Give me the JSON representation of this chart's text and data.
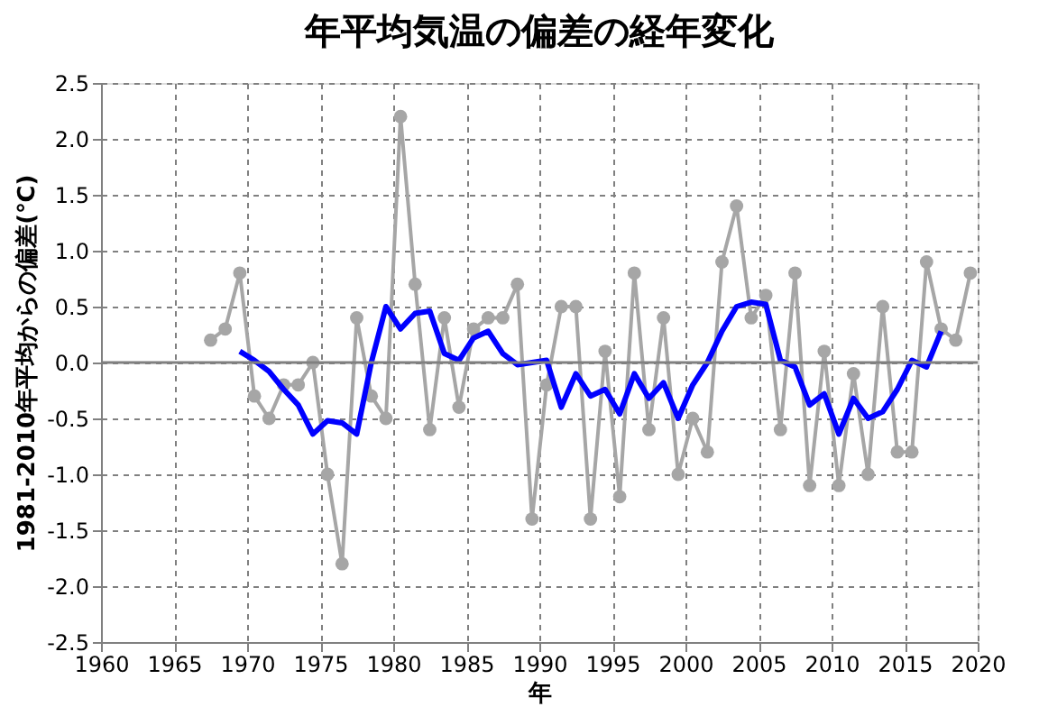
{
  "chart_data": {
    "type": "line",
    "title": "年平均気温の偏差の経年変化",
    "xlabel": "年",
    "ylabel": "1981-2010年平均からの偏差(℃)",
    "xlim": [
      1960,
      2020
    ],
    "xticks": [
      1960,
      1965,
      1970,
      1975,
      1980,
      1985,
      1990,
      1995,
      2000,
      2005,
      2010,
      2015,
      2020
    ],
    "ylim": [
      -2.5,
      2.5
    ],
    "yticks": [
      {
        "value": -2.5,
        "label": "-2.5"
      },
      {
        "value": -2,
        "label": "-2.0"
      },
      {
        "value": -1.5,
        "label": "-1.5"
      },
      {
        "value": -1,
        "label": "-1.0"
      },
      {
        "value": -0.5,
        "label": "-0.5"
      },
      {
        "value": 0,
        "label": "0.0"
      },
      {
        "value": 0.5,
        "label": "0.5"
      },
      {
        "value": 1,
        "label": "1.0"
      },
      {
        "value": 1.5,
        "label": "1.5"
      },
      {
        "value": 2,
        "label": "2.0"
      },
      {
        "value": 2.5,
        "label": "2.5"
      }
    ],
    "grid": true,
    "line_style": "solid",
    "ref_lines": [
      {
        "axis": "y",
        "value": 0,
        "color": "#808080",
        "line_style": "solid"
      }
    ],
    "series": [
      {
        "color": "#a6a6a6",
        "marker": "circle",
        "x": [
          1967.5,
          1968.5,
          1969.5,
          1970.5,
          1971.5,
          1972.5,
          1973.5,
          1974.5,
          1975.5,
          1976.5,
          1977.5,
          1978.5,
          1979.5,
          1980.5,
          1981.5,
          1982.5,
          1983.5,
          1984.5,
          1985.5,
          1986.5,
          1987.5,
          1988.5,
          1989.5,
          1990.5,
          1991.5,
          1992.5,
          1993.5,
          1994.5,
          1995.5,
          1996.5,
          1997.5,
          1998.5,
          1999.5,
          2000.5,
          2001.5,
          2002.5,
          2003.5,
          2004.5,
          2005.5,
          2006.5,
          2007.5,
          2008.5,
          2009.5,
          2010.5,
          2011.5,
          2012.5,
          2013.5,
          2014.5,
          2015.5,
          2016.5,
          2017.5,
          2018.5,
          2019.5
        ],
        "values": [
          0.2,
          0.3,
          0.8,
          -0.3,
          -0.5,
          -0.2,
          -0.2,
          0.0,
          -1.0,
          -1.8,
          0.4,
          -0.3,
          -0.5,
          2.2,
          0.7,
          -0.6,
          0.4,
          -0.4,
          0.3,
          0.4,
          0.4,
          0.7,
          -1.4,
          -0.2,
          0.5,
          0.5,
          -1.4,
          0.1,
          -1.2,
          0.8,
          -0.6,
          0.4,
          -1.0,
          -0.5,
          -0.8,
          0.9,
          1.4,
          0.4,
          0.6,
          -0.6,
          0.8,
          -1.1,
          0.1,
          -1.1,
          -0.1,
          -1.0,
          0.5,
          -0.8,
          -0.8,
          0.9,
          0.3,
          0.2,
          0.8
        ]
      },
      {
        "color": "#0000ff",
        "marker": "none",
        "x": [
          1969.5,
          1970.5,
          1971.5,
          1972.5,
          1973.5,
          1974.5,
          1975.5,
          1976.5,
          1977.5,
          1978.5,
          1979.5,
          1980.5,
          1981.5,
          1982.5,
          1983.5,
          1984.5,
          1985.5,
          1986.5,
          1987.5,
          1988.5,
          1989.5,
          1990.5,
          1991.5,
          1992.5,
          1993.5,
          1994.5,
          1995.5,
          1996.5,
          1997.5,
          1998.5,
          1999.5,
          2000.5,
          2001.5,
          2002.5,
          2003.5,
          2004.5,
          2005.5,
          2006.5,
          2007.5,
          2008.5,
          2009.5,
          2010.5,
          2011.5,
          2012.5,
          2013.5,
          2014.5,
          2015.5,
          2016.5,
          2017.5
        ],
        "values": [
          0.1,
          0.02,
          -0.08,
          -0.24,
          -0.38,
          -0.64,
          -0.52,
          -0.54,
          -0.64,
          0.0,
          0.5,
          0.3,
          0.44,
          0.46,
          0.08,
          0.02,
          0.22,
          0.28,
          0.08,
          -0.02,
          0.0,
          0.02,
          -0.4,
          -0.1,
          -0.3,
          -0.24,
          -0.46,
          -0.1,
          -0.32,
          -0.18,
          -0.5,
          -0.2,
          0.0,
          0.28,
          0.5,
          0.54,
          0.52,
          0.02,
          -0.04,
          -0.38,
          -0.28,
          -0.64,
          -0.32,
          -0.5,
          -0.44,
          -0.24,
          0.02,
          -0.04,
          0.28
        ]
      }
    ]
  }
}
